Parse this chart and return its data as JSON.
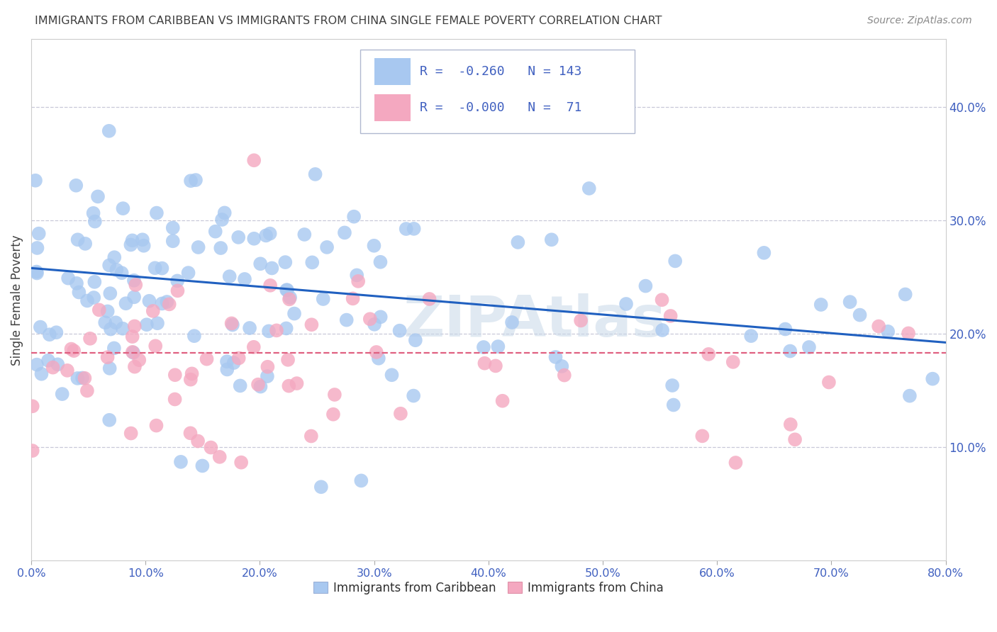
{
  "title": "IMMIGRANTS FROM CARIBBEAN VS IMMIGRANTS FROM CHINA SINGLE FEMALE POVERTY CORRELATION CHART",
  "source": "Source: ZipAtlas.com",
  "ylabel": "Single Female Poverty",
  "xlim": [
    0,
    0.8
  ],
  "ylim": [
    0,
    0.46
  ],
  "yticks_right": [
    0.1,
    0.2,
    0.3,
    0.4
  ],
  "caribbean_R": -0.26,
  "caribbean_N": 143,
  "china_R": -0.0,
  "china_N": 71,
  "caribbean_color": "#a8c8f0",
  "china_color": "#f4a8c0",
  "caribbean_line_color": "#2060c0",
  "china_line_color": "#e06080",
  "background_color": "#ffffff",
  "grid_color": "#c8c8d8",
  "watermark": "ZIPAtlas",
  "watermark_color": "#c8d8e8",
  "title_color": "#404040",
  "tick_label_color": "#4060c0",
  "caribbean_intercept": 0.258,
  "caribbean_slope": -0.082,
  "china_intercept": 0.183,
  "china_slope": 0.0
}
